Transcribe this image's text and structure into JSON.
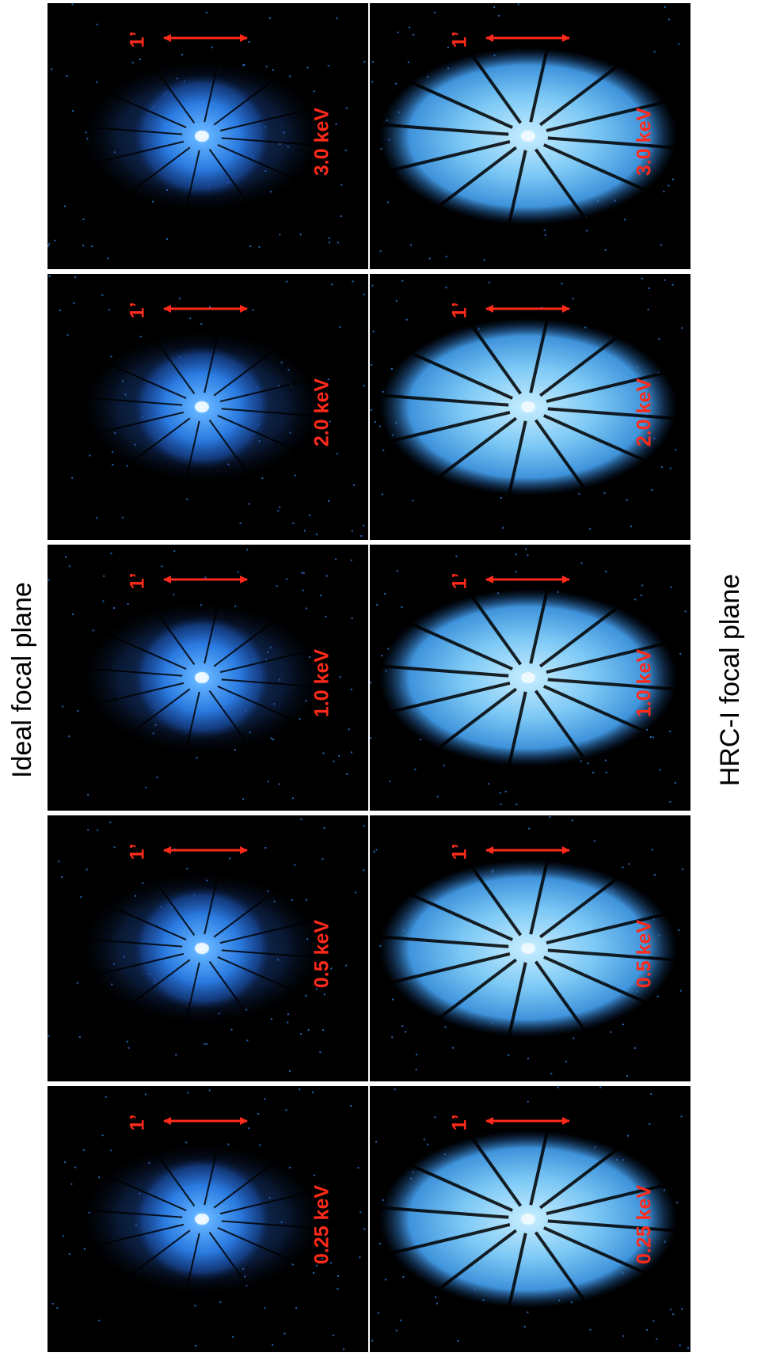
{
  "labels": {
    "ideal": "Ideal focal plane",
    "hrc": "HRC-I focal plane"
  },
  "panels": {
    "ideal": [
      {
        "energy": "3.0 keV",
        "scale": "1’"
      },
      {
        "energy": "2.0 keV",
        "scale": "1’"
      },
      {
        "energy": "1.0 keV",
        "scale": "1’"
      },
      {
        "energy": "0.5 keV",
        "scale": "1’"
      },
      {
        "energy": "0.25 keV",
        "scale": "1’"
      }
    ],
    "hrc": [
      {
        "energy": "3.0 keV",
        "scale": "1’"
      },
      {
        "energy": "2.0 keV",
        "scale": "1’"
      },
      {
        "energy": "1.0 keV",
        "scale": "1’"
      },
      {
        "energy": "0.5 keV",
        "scale": "1’"
      },
      {
        "energy": "0.25 keV",
        "scale": "1’"
      }
    ]
  }
}
